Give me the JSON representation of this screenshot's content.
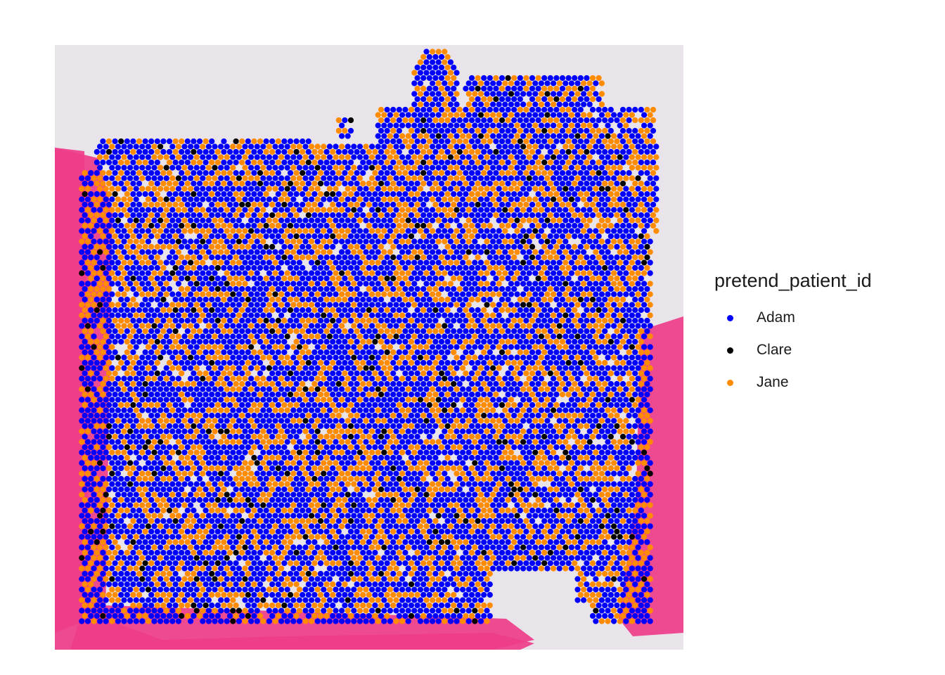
{
  "chart_data": {
    "type": "scatter",
    "title": "",
    "xlabel": "",
    "ylabel": "",
    "grid": false,
    "axes_visible": false,
    "background": "H&E tissue image",
    "legend": {
      "title": "pretend_patient_id",
      "position": "right",
      "entries": [
        {
          "name": "Adam",
          "color": "#0000ff"
        },
        {
          "name": "Clare",
          "color": "#000000"
        },
        {
          "name": "Jane",
          "color": "#ff8c00"
        }
      ]
    },
    "series": [
      {
        "name": "Adam",
        "color": "#0000ff",
        "proportion": 0.6
      },
      {
        "name": "Clare",
        "color": "#000000",
        "proportion": 0.05
      },
      {
        "name": "Jane",
        "color": "#ff8c00",
        "proportion": 0.35
      }
    ],
    "spot_layout": "hexagonal grid of Visium spots over tissue"
  }
}
